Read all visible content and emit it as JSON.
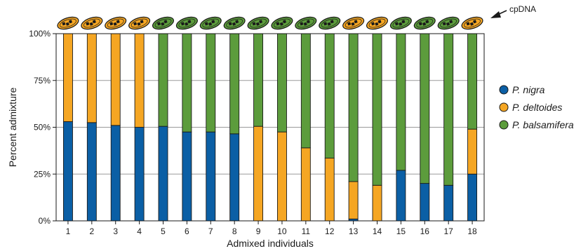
{
  "chart_data": {
    "type": "bar",
    "stacked": true,
    "xlabel": "Admixed individuals",
    "ylabel": "Percent admixture",
    "ylim": [
      0,
      100
    ],
    "ytick_labels": [
      "0%",
      "25%",
      "50%",
      "75%",
      "100%"
    ],
    "ytick_values": [
      0,
      25,
      50,
      75,
      100
    ],
    "grid": "horizontal",
    "legend_position": "right",
    "categories": [
      "1",
      "2",
      "3",
      "4",
      "5",
      "6",
      "7",
      "8",
      "9",
      "10",
      "11",
      "12",
      "13",
      "14",
      "15",
      "16",
      "17",
      "18"
    ],
    "series": [
      {
        "name": "P. nigra",
        "color": "#0b5fa5",
        "values": [
          53,
          52.5,
          51,
          50,
          50.5,
          47.5,
          47.5,
          46.5,
          0,
          0,
          0,
          0,
          1,
          0,
          27,
          20,
          19,
          25
        ]
      },
      {
        "name": "P. deltoides",
        "color": "#f5a623",
        "values": [
          47,
          47.5,
          49,
          50,
          0,
          0,
          0,
          0,
          50.5,
          47.5,
          39,
          33.5,
          20,
          19,
          0,
          0,
          0,
          24
        ]
      },
      {
        "name": "P. balsamifera",
        "color": "#5c9c3c",
        "values": [
          0,
          0,
          0,
          0,
          49.5,
          52.5,
          52.5,
          53.5,
          49.5,
          52.5,
          61,
          66.5,
          79,
          81,
          73,
          80,
          81,
          51
        ]
      }
    ],
    "cpdna": [
      "P. deltoides",
      "P. deltoides",
      "P. deltoides",
      "P. deltoides",
      "P. balsamifera",
      "P. balsamifera",
      "P. balsamifera",
      "P. balsamifera",
      "P. balsamifera",
      "P. balsamifera",
      "P. balsamifera",
      "P. balsamifera",
      "P. deltoides",
      "P. deltoides",
      "P. balsamifera",
      "P. balsamifera",
      "P. balsamifera",
      "P. deltoides"
    ],
    "annotation": "cpDNA"
  }
}
